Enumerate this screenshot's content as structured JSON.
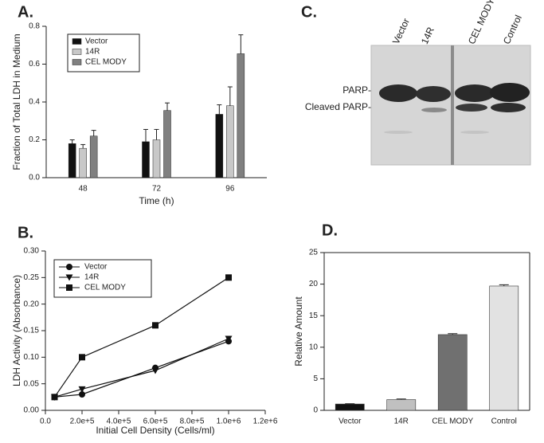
{
  "chart_data": [
    {
      "type": "bar",
      "label": "A.",
      "ylabel": "Fraction of Total LDH in Medium",
      "xlabel": "Time (h)",
      "categories": [
        "48",
        "72",
        "96"
      ],
      "series": [
        {
          "name": "Vector",
          "color": "#111111",
          "values": [
            0.18,
            0.19,
            0.335
          ],
          "errors": [
            0.02,
            0.065,
            0.05
          ]
        },
        {
          "name": "14R",
          "color": "#c8c8c8",
          "values": [
            0.155,
            0.2,
            0.38
          ],
          "errors": [
            0.02,
            0.055,
            0.1
          ]
        },
        {
          "name": "CEL MODY",
          "color": "#808080",
          "values": [
            0.22,
            0.355,
            0.655
          ],
          "errors": [
            0.03,
            0.04,
            0.1
          ]
        }
      ],
      "ylim": [
        0,
        0.8
      ],
      "yticks": [
        {
          "value": 0,
          "label": "0.0"
        },
        0.2,
        0.4,
        0.6,
        0.8
      ],
      "legend": "upper left"
    },
    {
      "type": "line",
      "label": "B.",
      "ylabel": "LDH Activity (Absorbance)",
      "xlabel": "Initial Cell Density (Cells/ml)",
      "x": [
        50000,
        200000,
        600000,
        1000000
      ],
      "series": [
        {
          "name": "Vector",
          "color": "#111111",
          "marker": "circle",
          "values": [
            0.025,
            0.03,
            0.08,
            0.13
          ]
        },
        {
          "name": "14R",
          "color": "#111111",
          "marker": "triangle-down",
          "values": [
            0.025,
            0.04,
            0.075,
            0.135
          ]
        },
        {
          "name": "CEL MODY",
          "color": "#111111",
          "marker": "square",
          "values": [
            0.025,
            0.1,
            0.16,
            0.25
          ]
        }
      ],
      "xlim": [
        0,
        1200000
      ],
      "xticks": [
        {
          "value": 0,
          "label": "0.0"
        },
        {
          "value": 200000,
          "label": "2.0e+5"
        },
        {
          "value": 400000,
          "label": "4.0e+5"
        },
        {
          "value": 600000,
          "label": "6.0e+5"
        },
        {
          "value": 800000,
          "label": "8.0e+5"
        },
        {
          "value": 1000000,
          "label": "1.0e+6"
        },
        {
          "value": 1200000,
          "label": "1.2e+6"
        }
      ],
      "ylim": [
        0,
        0.3
      ],
      "yticks": [
        {
          "value": 0,
          "label": "0.00"
        },
        0.05,
        {
          "value": 0.1,
          "label": "0.10"
        },
        0.15,
        {
          "value": 0.2,
          "label": "0.20"
        },
        0.25,
        {
          "value": 0.3,
          "label": "0.30"
        }
      ],
      "legend": "upper left"
    },
    {
      "type": "bar",
      "label": "D.",
      "ylabel": "Relative Amount",
      "categories": [
        "Vector",
        "14R",
        "CEL MODY",
        "Control"
      ],
      "values": [
        1,
        1.7,
        12,
        19.7
      ],
      "errors": [
        0.05,
        0.1,
        0.15,
        0.2
      ],
      "colors": [
        "#111111",
        "#c0c0c0",
        "#707070",
        "#e2e2e2"
      ],
      "ylim": [
        0,
        25
      ],
      "yticks": [
        0,
        5,
        10,
        15,
        20,
        25
      ]
    }
  ],
  "blot": {
    "label": "C.",
    "lanes": [
      "Vector",
      "14R",
      "CEL MODY",
      "Control"
    ],
    "bands": [
      "PARP-",
      "Cleaved PARP-"
    ]
  }
}
